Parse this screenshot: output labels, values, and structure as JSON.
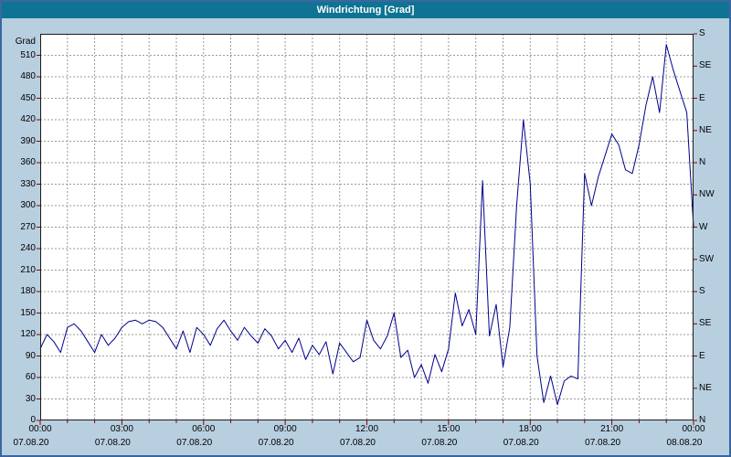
{
  "window": {
    "title": "Windrichtung [Grad]"
  },
  "colors": {
    "titlebar_bg": "#0f7393",
    "titlebar_text": "#ffffff",
    "window_bg": "#b8cfe0",
    "window_border": "#3a66a0",
    "plot_bg": "#ffffff",
    "plot_border": "#1c1c1c",
    "grid": "#9a9a9a",
    "series_line": "#00008b",
    "tick": "#8b0000",
    "label_text": "#000000"
  },
  "chart_data": {
    "type": "line",
    "title": "Windrichtung [Grad]",
    "ylabel_left_unit": "Grad",
    "xlim": [
      0,
      24
    ],
    "ylim": [
      0,
      540
    ],
    "grid_x_step_hours": 1,
    "grid_y_step": 30,
    "y_left_tick_step": 30,
    "y_left_tick_labels": [
      "0",
      "30",
      "60",
      "90",
      "120",
      "150",
      "180",
      "210",
      "240",
      "270",
      "300",
      "330",
      "360",
      "390",
      "420",
      "450",
      "480",
      "510"
    ],
    "y_right_tick_step": 45,
    "y_right_tick_labels": [
      "N",
      "NE",
      "E",
      "SE",
      "S",
      "SW",
      "W",
      "NW",
      "N",
      "NE",
      "E",
      "SE",
      "S"
    ],
    "x_tick_step_hours": 3,
    "x_tick_labels": [
      "00:00",
      "03:00",
      "06:00",
      "09:00",
      "12:00",
      "15:00",
      "18:00",
      "21:00",
      "00:00"
    ],
    "x_date_labels": [
      "07.08.20",
      "07.08.20",
      "07.08.20",
      "07.08.20",
      "07.08.20",
      "07.08.20",
      "07.08.20",
      "07.08.20",
      "08.08.20"
    ],
    "grid_on": true,
    "legend": "none",
    "series": [
      {
        "name": "Windrichtung",
        "x_start_hours": 0,
        "x_step_hours": 0.25,
        "values": [
          100,
          120,
          110,
          95,
          130,
          135,
          125,
          110,
          95,
          120,
          105,
          115,
          130,
          138,
          140,
          135,
          140,
          138,
          130,
          115,
          100,
          125,
          95,
          130,
          120,
          105,
          128,
          140,
          125,
          112,
          130,
          118,
          108,
          128,
          118,
          100,
          112,
          95,
          115,
          85,
          105,
          92,
          110,
          65,
          108,
          95,
          82,
          88,
          140,
          112,
          100,
          118,
          150,
          88,
          98,
          60,
          78,
          52,
          92,
          68,
          100,
          178,
          132,
          155,
          120,
          335,
          118,
          162,
          75,
          130,
          300,
          420,
          330,
          90,
          25,
          62,
          22,
          55,
          62,
          58,
          345,
          300,
          340,
          370,
          400,
          385,
          350,
          345,
          385,
          440,
          480,
          430,
          525,
          490,
          460,
          430,
          270
        ]
      }
    ]
  }
}
